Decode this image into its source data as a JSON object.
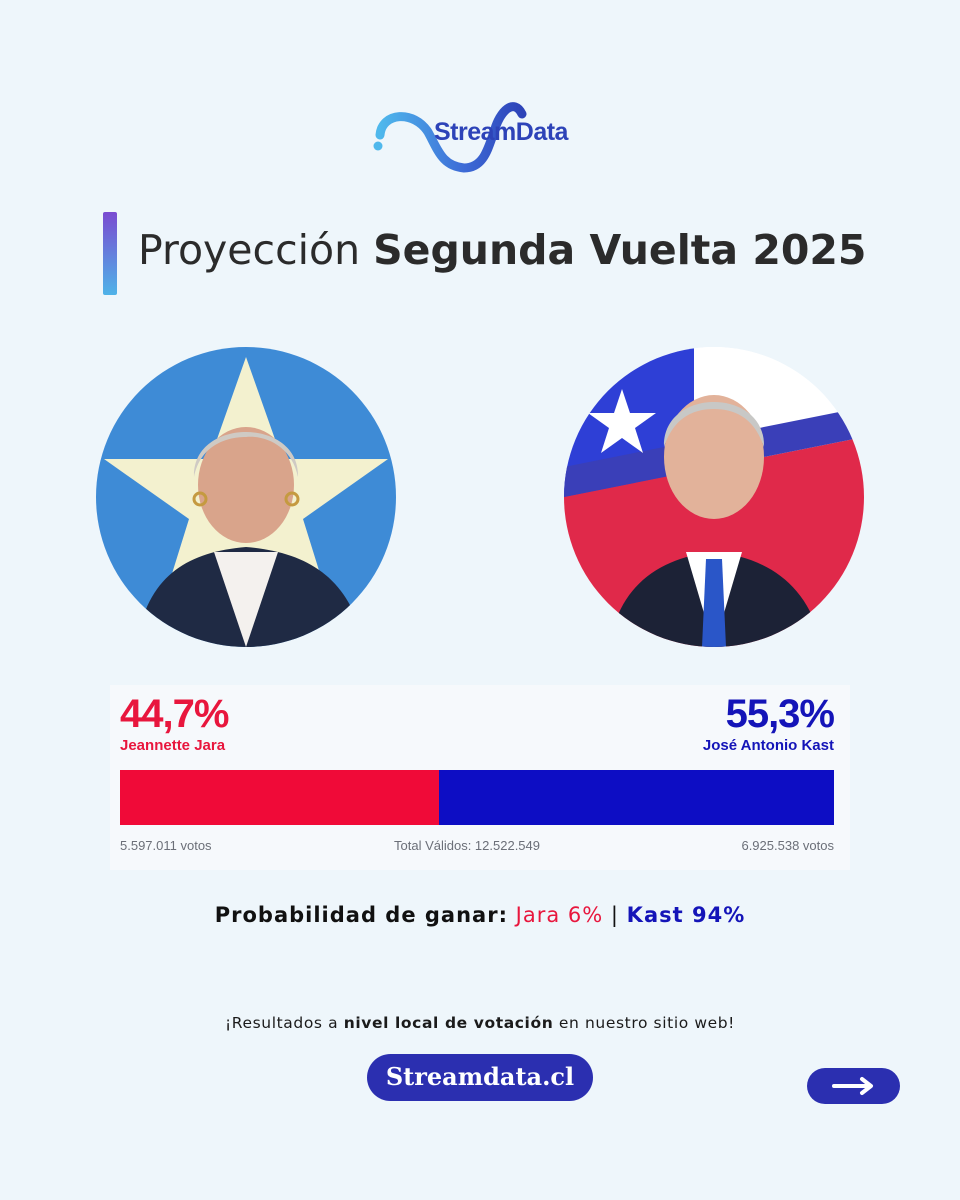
{
  "logo": {
    "text": "StreamData"
  },
  "title": {
    "light": "Proyección",
    "bold": "Segunda Vuelta 2025"
  },
  "candidates": {
    "jara": {
      "name": "Jeannette Jara",
      "percent_label": "44,7%",
      "share": 44.7,
      "votes": "5.597.011 votos",
      "color": "#f00a38"
    },
    "kast": {
      "name": "José Antonio Kast",
      "percent_label": "55,3%",
      "share": 55.3,
      "votes": "6.925.538 votos",
      "color": "#0d0dc4"
    }
  },
  "total": "Total Válidos: 12.522.549",
  "probability": {
    "label": "Probabilidad de ganar:",
    "jara": "Jara 6%",
    "separator": "|",
    "kast": "Kast 94%"
  },
  "footer": {
    "note_start": "¡Resultados a",
    "note_bold": "nivel local de votación",
    "note_end": "en nuestro sitio web!",
    "site_label": "Streamdata.cl",
    "arrow_icon": "arrow-right-icon"
  }
}
